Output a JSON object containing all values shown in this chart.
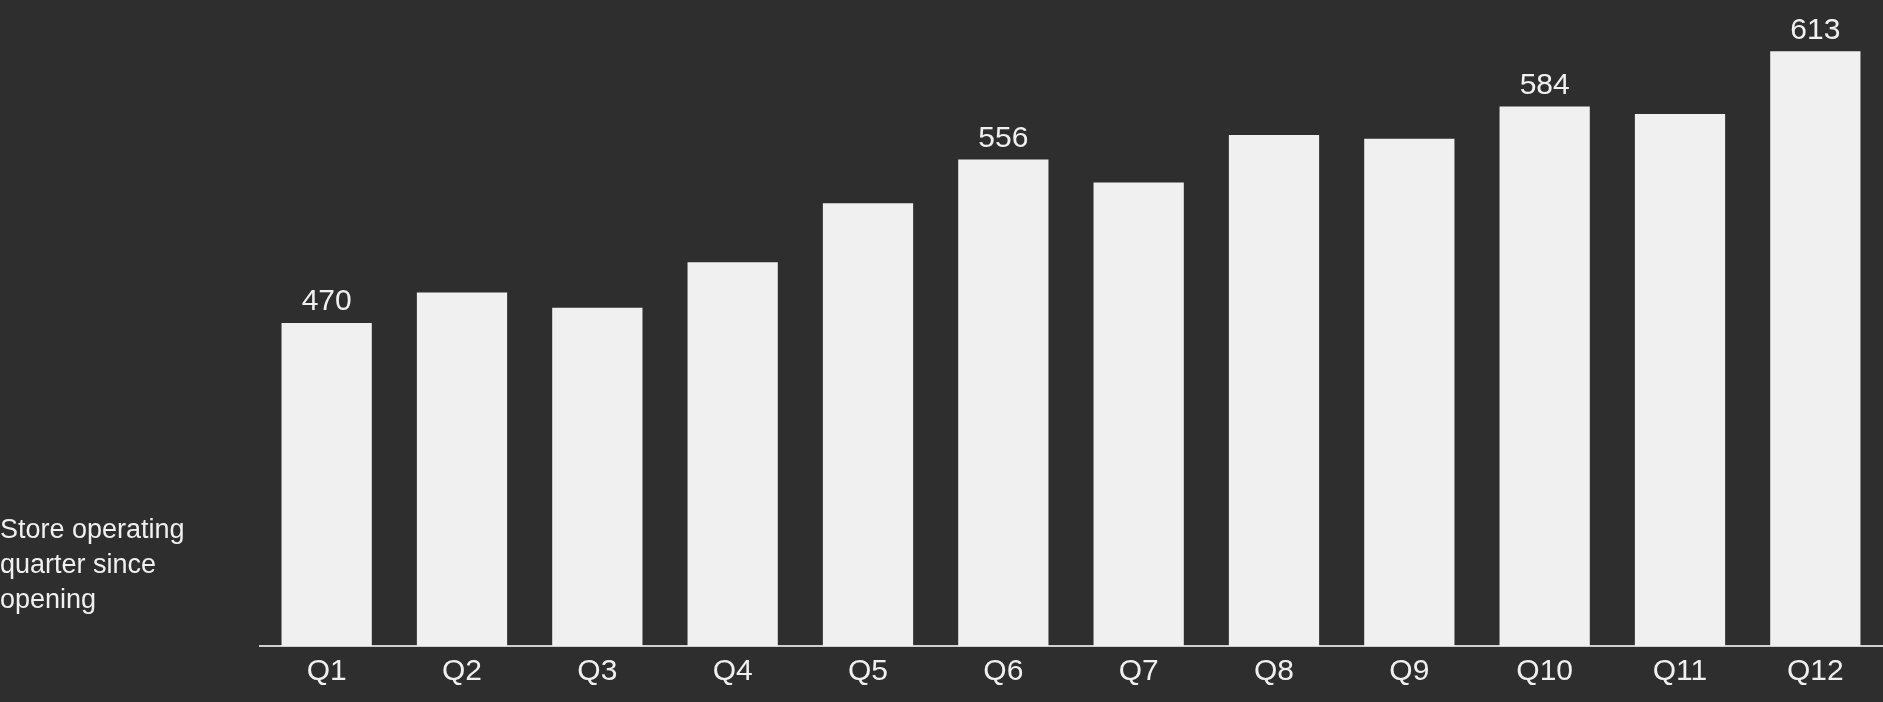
{
  "chart_data": {
    "type": "bar",
    "xlabel": "Store operating quarter since opening",
    "categories": [
      "Q1",
      "Q2",
      "Q3",
      "Q4",
      "Q5",
      "Q6",
      "Q7",
      "Q8",
      "Q9",
      "Q10",
      "Q11",
      "Q12"
    ],
    "values": [
      470,
      486,
      478,
      502,
      533,
      556,
      544,
      569,
      567,
      584,
      580,
      613
    ],
    "value_labels": [
      "470",
      null,
      null,
      null,
      null,
      "556",
      null,
      null,
      null,
      "584",
      null,
      "613"
    ],
    "color": "#f0f0f0",
    "ylim": [
      300,
      640
    ],
    "tick_labels": "x",
    "grid": false,
    "legend": false
  }
}
